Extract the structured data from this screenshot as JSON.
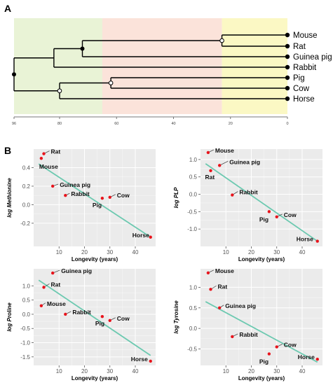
{
  "panels": {
    "a": "A",
    "b": "B"
  },
  "tree": {
    "leaves": [
      "Mouse",
      "Rat",
      "Guinea pig",
      "Rabbit",
      "Pig",
      "Cow",
      "Horse"
    ],
    "axis_ticks": [
      96,
      80,
      60,
      40,
      20,
      0
    ],
    "axis_max": 96,
    "bands": [
      {
        "from": 96,
        "to": 65,
        "color": "#e9f3d6"
      },
      {
        "from": 65,
        "to": 23,
        "color": "#fbe3da"
      },
      {
        "from": 23,
        "to": 0,
        "color": "#fbf8c4"
      }
    ]
  },
  "chart_data": [
    {
      "type": "scatter",
      "title": "",
      "xlabel": "Longevity (years)",
      "ylabel": "log Methionine",
      "xlim": [
        0,
        48
      ],
      "ylim": [
        -0.45,
        0.6
      ],
      "xticks": [
        10,
        20,
        30,
        40
      ],
      "yticks": [
        0.4,
        0.2,
        0.0,
        -0.2
      ],
      "ytick_labels": [
        "0.4",
        "0.2",
        "0.0",
        "-0.2"
      ],
      "points": [
        {
          "name": "Rat",
          "x": 4,
          "y": 0.55
        },
        {
          "name": "Mouse",
          "x": 3,
          "y": 0.5
        },
        {
          "name": "Guinea pig",
          "x": 7.5,
          "y": 0.2
        },
        {
          "name": "Rabbit",
          "x": 12.5,
          "y": 0.1
        },
        {
          "name": "Pig",
          "x": 27,
          "y": 0.07
        },
        {
          "name": "Cow",
          "x": 30,
          "y": 0.08
        },
        {
          "name": "Horse",
          "x": 46,
          "y": -0.35
        }
      ],
      "fit": [
        [
          2,
          0.44
        ],
        [
          46,
          -0.35
        ]
      ]
    },
    {
      "type": "scatter",
      "title": "",
      "xlabel": "Longevity (years)",
      "ylabel": "log PLP",
      "xlim": [
        0,
        48
      ],
      "ylim": [
        -1.5,
        1.3
      ],
      "xticks": [
        10,
        20,
        30,
        40
      ],
      "yticks": [
        1.0,
        0.5,
        0.0,
        -0.5,
        -1.0
      ],
      "ytick_labels": [
        "1.0",
        "0.5",
        "0.0",
        "-0.5",
        "-1.0"
      ],
      "points": [
        {
          "name": "Mouse",
          "x": 3,
          "y": 1.2
        },
        {
          "name": "Rat",
          "x": 4,
          "y": 0.68
        },
        {
          "name": "Guinea pig",
          "x": 7.5,
          "y": 0.83
        },
        {
          "name": "Rabbit",
          "x": 12.5,
          "y": -0.02
        },
        {
          "name": "Pig",
          "x": 27,
          "y": -0.5
        },
        {
          "name": "Cow",
          "x": 30,
          "y": -0.65
        },
        {
          "name": "Horse",
          "x": 46,
          "y": -1.35
        }
      ],
      "fit": [
        [
          2,
          0.88
        ],
        [
          46,
          -1.35
        ]
      ]
    },
    {
      "type": "scatter",
      "title": "",
      "xlabel": "Longevity (years)",
      "ylabel": "log Proline",
      "xlim": [
        0,
        48
      ],
      "ylim": [
        -1.8,
        1.6
      ],
      "xticks": [
        10,
        20,
        30,
        40
      ],
      "yticks": [
        1.0,
        0.5,
        0.0,
        -0.5,
        -1.0,
        -1.5
      ],
      "ytick_labels": [
        "1.0",
        "0.5",
        "0.0",
        "-0.5",
        "-1.0",
        "-1.5"
      ],
      "points": [
        {
          "name": "Guinea pig",
          "x": 7.5,
          "y": 1.45
        },
        {
          "name": "Rat",
          "x": 4,
          "y": 0.95
        },
        {
          "name": "Mouse",
          "x": 3,
          "y": 0.3
        },
        {
          "name": "Rabbit",
          "x": 12.5,
          "y": 0.0
        },
        {
          "name": "Pig",
          "x": 27,
          "y": -0.08
        },
        {
          "name": "Cow",
          "x": 30,
          "y": -0.22
        },
        {
          "name": "Horse",
          "x": 46,
          "y": -1.65
        }
      ],
      "fit": [
        [
          2,
          1.2
        ],
        [
          46,
          -1.45
        ]
      ]
    },
    {
      "type": "scatter",
      "title": "",
      "xlabel": "Longevity (years)",
      "ylabel": "log Tyrosine",
      "xlim": [
        0,
        48
      ],
      "ylim": [
        -0.9,
        1.45
      ],
      "xticks": [
        10,
        20,
        30,
        40
      ],
      "yticks": [
        1.0,
        0.5,
        0.0,
        -0.5
      ],
      "ytick_labels": [
        "1.0",
        "0.5",
        "0.0",
        "-0.5"
      ],
      "points": [
        {
          "name": "Mouse",
          "x": 3,
          "y": 1.35
        },
        {
          "name": "Rat",
          "x": 4,
          "y": 0.95
        },
        {
          "name": "Guinea pig",
          "x": 7.5,
          "y": 0.5
        },
        {
          "name": "Rabbit",
          "x": 12.5,
          "y": -0.2
        },
        {
          "name": "Pig",
          "x": 27,
          "y": -0.62
        },
        {
          "name": "Cow",
          "x": 30,
          "y": -0.45
        },
        {
          "name": "Horse",
          "x": 46,
          "y": -0.75
        }
      ],
      "fit": [
        [
          2,
          0.65
        ],
        [
          46,
          -0.82
        ]
      ]
    }
  ],
  "colors": {
    "plot_bg": "#ebebeb",
    "grid": "#ffffff",
    "fit_line": "#6cc9b0",
    "point": "#e8141c",
    "tree": "#000000"
  }
}
